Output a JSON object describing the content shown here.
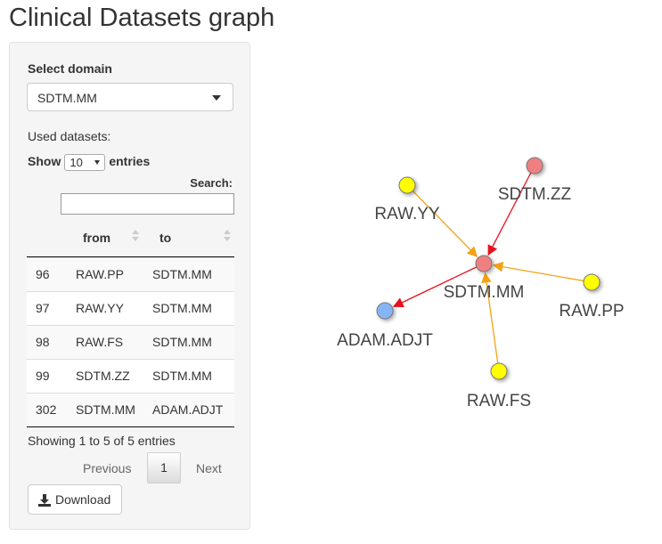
{
  "page": {
    "title": "Clinical Datasets graph"
  },
  "sidebar": {
    "domain_label": "Select domain",
    "domain_value": "SDTM.MM",
    "used_label": "Used datasets:",
    "show_label": "Show",
    "entries_value": "10",
    "entries_label": "entries",
    "search_label": "Search:",
    "search_value": "",
    "table": {
      "headers": [
        "",
        "from",
        "to"
      ],
      "rows": [
        {
          "id": "96",
          "from": "RAW.PP",
          "to": "SDTM.MM"
        },
        {
          "id": "97",
          "from": "RAW.YY",
          "to": "SDTM.MM"
        },
        {
          "id": "98",
          "from": "RAW.FS",
          "to": "SDTM.MM"
        },
        {
          "id": "99",
          "from": "SDTM.ZZ",
          "to": "SDTM.MM"
        },
        {
          "id": "302",
          "from": "SDTM.MM",
          "to": "ADAM.ADJT"
        }
      ]
    },
    "info": "Showing 1 to 5 of 5 entries",
    "pagination": {
      "previous": "Previous",
      "current": "1",
      "next": "Next"
    },
    "download_label": "Download",
    "download_icon": "download-icon"
  },
  "graph": {
    "nodes": [
      {
        "label": "SDTM.MM",
        "color": "#f08080"
      },
      {
        "label": "SDTM.ZZ",
        "color": "#f08080"
      },
      {
        "label": "RAW.YY",
        "color": "#ffff00"
      },
      {
        "label": "RAW.PP",
        "color": "#ffff00"
      },
      {
        "label": "RAW.FS",
        "color": "#ffff00"
      },
      {
        "label": "ADAM.ADJT",
        "color": "#87b4f5"
      }
    ],
    "edges": [
      {
        "from": "RAW.YY",
        "to": "SDTM.MM",
        "color": "#f4a214"
      },
      {
        "from": "RAW.PP",
        "to": "SDTM.MM",
        "color": "#f4a214"
      },
      {
        "from": "RAW.FS",
        "to": "SDTM.MM",
        "color": "#f4a214"
      },
      {
        "from": "SDTM.ZZ",
        "to": "SDTM.MM",
        "color": "#e8101c"
      },
      {
        "from": "SDTM.MM",
        "to": "ADAM.ADJT",
        "color": "#e8101c"
      }
    ]
  }
}
